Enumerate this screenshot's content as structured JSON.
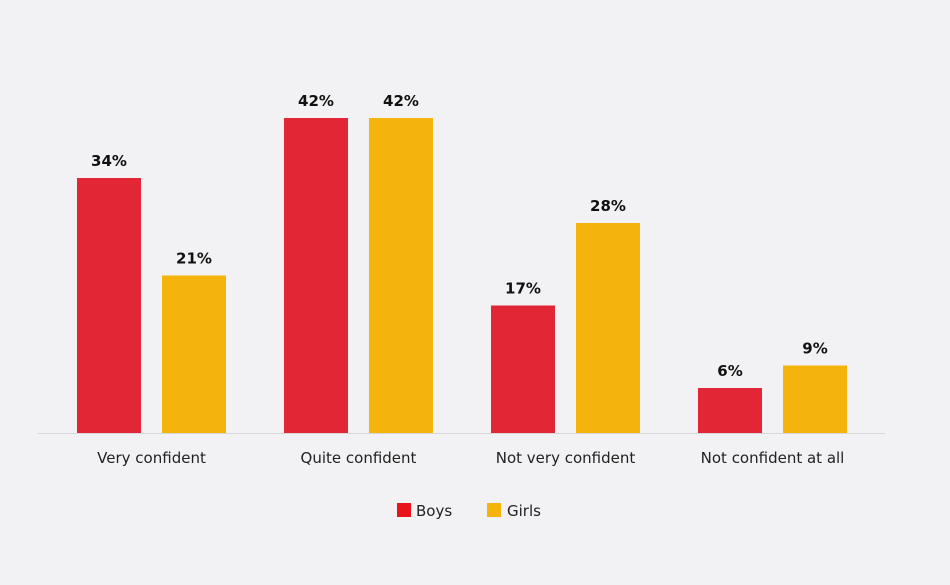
{
  "chart_data": {
    "type": "bar",
    "title": "",
    "xlabel": "",
    "ylabel": "",
    "ylim": [
      0,
      42
    ],
    "grid": false,
    "legend_placement": "bottom",
    "categories": [
      "Very confident",
      "Quite confident",
      "Not very confident",
      "Not confident at all"
    ],
    "series": [
      {
        "name": "Boys",
        "values": [
          34,
          42,
          17,
          6
        ],
        "labels": [
          "34%",
          "42%",
          "17%",
          "6%"
        ],
        "color": "#e32636",
        "legend_color": "#e8141b"
      },
      {
        "name": "Girls",
        "values": [
          21,
          42,
          28,
          9
        ],
        "labels": [
          "21%",
          "42%",
          "28%",
          "9%"
        ],
        "color": "#f5b40b",
        "legend_color": "#f5b40b"
      }
    ]
  }
}
